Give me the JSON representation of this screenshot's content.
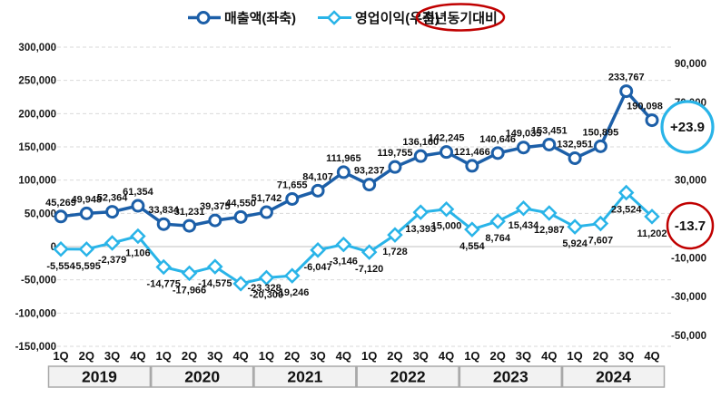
{
  "legend": {
    "series1_label": "매출액(좌축)",
    "series2_label": "영업이익(우축)",
    "yoy_label": "전년동기대비"
  },
  "colors": {
    "revenue": "#1C5FA8",
    "operating": "#29B4E8",
    "annotation_blue": "#29B4E8",
    "annotation_red": "#C00000",
    "grid": "#DADADA",
    "zero_line": "#C0C0C0",
    "year_box_fill": "#F2F2F2",
    "year_box_border": "#A8A8A8",
    "text": "#111111"
  },
  "chart_data": {
    "type": "line",
    "quarters": [
      "1Q",
      "2Q",
      "3Q",
      "4Q"
    ],
    "years": [
      "2019",
      "2020",
      "2021",
      "2022",
      "2023",
      "2024"
    ],
    "series": [
      {
        "name": "매출액(좌축)",
        "axis": "left",
        "marker": "circle",
        "color": "#1C5FA8",
        "values": [
          45269,
          49948,
          52364,
          61354,
          33834,
          31231,
          39375,
          44550,
          51742,
          71655,
          84107,
          111965,
          93237,
          119755,
          136160,
          142245,
          121466,
          140646,
          149035,
          153451,
          132951,
          150895,
          233767,
          190098
        ]
      },
      {
        "name": "영업이익(우축)",
        "axis": "right",
        "marker": "diamond",
        "color": "#29B4E8",
        "values": [
          -5554,
          -5595,
          -2379,
          1106,
          -14775,
          -17966,
          -14575,
          -23328,
          -20300,
          -19246,
          -6047,
          -3146,
          -7120,
          1728,
          13393,
          15000,
          4554,
          8764,
          15434,
          12987,
          5924,
          7607,
          23524,
          11202
        ]
      }
    ],
    "left_axis": {
      "min": -150000,
      "max": 300000,
      "step": 50000,
      "ticks": [
        "300,000",
        "250,000",
        "200,000",
        "150,000",
        "100,000",
        "50,000",
        "0",
        "-50,000",
        "-100,000",
        "-150,000"
      ]
    },
    "right_axis": {
      "min": -50000,
      "max": 90000,
      "step": 20000,
      "ticks": [
        "90,000",
        "70,000",
        "50,000",
        "30,000",
        "10,000",
        "-10,000",
        "-30,000",
        "-50,000"
      ]
    },
    "grid": "horizontal dashed, solid zero line",
    "legend_position": "top center",
    "annotations": [
      {
        "text": "+23.9",
        "shape": "circle",
        "color": "#29B4E8",
        "refers_to": "매출액 전년동기대비"
      },
      {
        "text": "-13.7",
        "shape": "circle",
        "color": "#C00000",
        "refers_to": "영업이익 전년동기대비"
      }
    ]
  }
}
